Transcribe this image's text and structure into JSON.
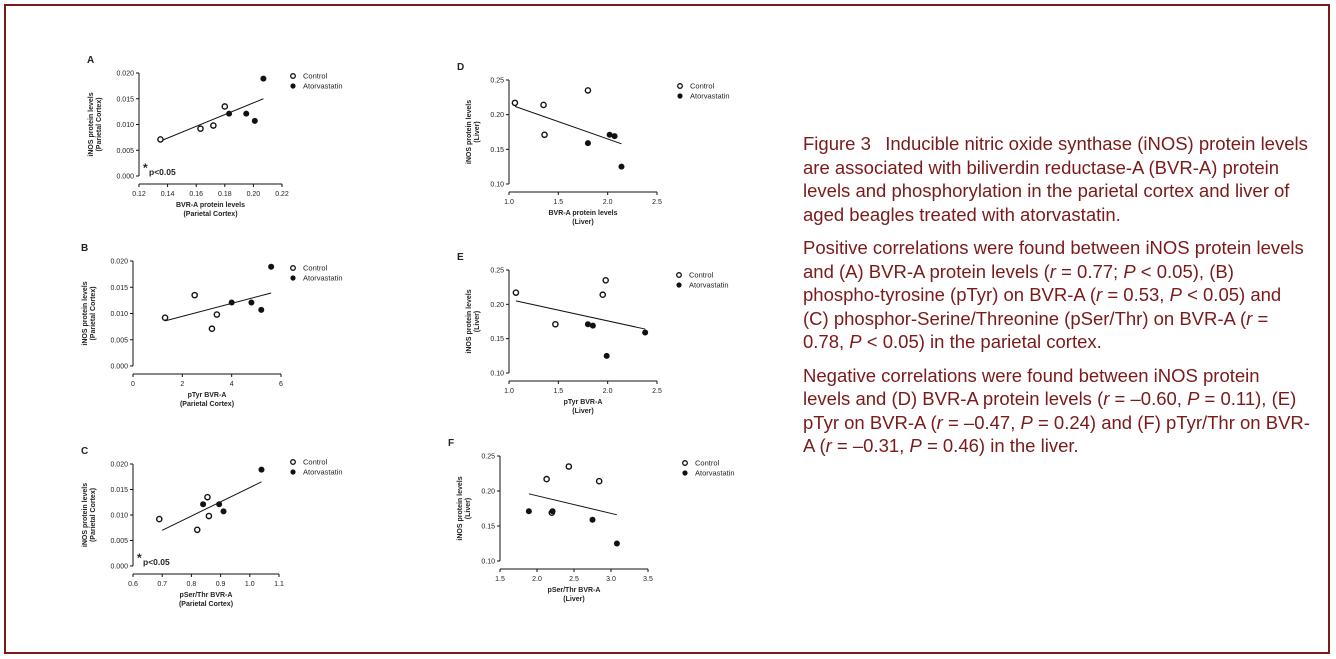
{
  "chart_data": [
    {
      "type": "scatter",
      "letter": "A",
      "xlabel": "BVR-A protein levels",
      "xlabel2": "(Parietal Cortex)",
      "ylabel": "iNOS protein levels",
      "ylabel2": "(Parietal Cortex)",
      "xlim": [
        0.12,
        0.22
      ],
      "ylim": [
        0,
        0.02
      ],
      "xticks": [
        "0.12",
        "0.14",
        "0.16",
        "0.18",
        "0.20",
        "0.22"
      ],
      "yticks": [
        "0.000",
        "0.005",
        "0.010",
        "0.015",
        "0.020"
      ],
      "annotation": "p<0.05",
      "annotation_star": "*",
      "legend": [
        "Control",
        "Atorvastatin"
      ],
      "series": [
        {
          "name": "Control",
          "marker": "open",
          "points": [
            [
              0.135,
              0.0071
            ],
            [
              0.163,
              0.0092
            ],
            [
              0.172,
              0.0098
            ],
            [
              0.18,
              0.0135
            ]
          ]
        },
        {
          "name": "Atorvastatin",
          "marker": "filled",
          "points": [
            [
              0.183,
              0.0121
            ],
            [
              0.195,
              0.0121
            ],
            [
              0.201,
              0.0107
            ],
            [
              0.207,
              0.0189
            ]
          ]
        }
      ],
      "fit": [
        [
          0.135,
          0.0068
        ],
        [
          0.207,
          0.015
        ]
      ]
    },
    {
      "type": "scatter",
      "letter": "B",
      "xlabel": "pTyr BVR-A",
      "xlabel2": "(Parietal Cortex)",
      "ylabel": "iNOS protein levels",
      "ylabel2": "(Parietal Cortex)",
      "xlim": [
        0,
        6
      ],
      "ylim": [
        0,
        0.02
      ],
      "xticks": [
        "0",
        "2",
        "4",
        "6"
      ],
      "yticks": [
        "0.000",
        "0.005",
        "0.010",
        "0.015",
        "0.020"
      ],
      "legend": [
        "Control",
        "Atorvastatin"
      ],
      "series": [
        {
          "name": "Control",
          "marker": "open",
          "points": [
            [
              1.3,
              0.0092
            ],
            [
              2.5,
              0.0135
            ],
            [
              3.2,
              0.0071
            ],
            [
              3.4,
              0.0098
            ]
          ]
        },
        {
          "name": "Atorvastatin",
          "marker": "filled",
          "points": [
            [
              4.0,
              0.0121
            ],
            [
              4.8,
              0.0121
            ],
            [
              5.2,
              0.0107
            ],
            [
              5.6,
              0.0189
            ]
          ]
        }
      ],
      "fit": [
        [
          1.3,
          0.0086
        ],
        [
          5.6,
          0.0139
        ]
      ]
    },
    {
      "type": "scatter",
      "letter": "C",
      "xlabel": "pSer/Thr BVR-A",
      "xlabel2": "(Parietal Cortex)",
      "ylabel": "iNOS protein levels",
      "ylabel2": "(Parietal Cortex)",
      "xlim": [
        0.6,
        1.1
      ],
      "ylim": [
        0,
        0.02
      ],
      "xticks": [
        "0.6",
        "0.7",
        "0.8",
        "0.9",
        "1.0",
        "1.1"
      ],
      "yticks": [
        "0.000",
        "0.005",
        "0.010",
        "0.015",
        "0.020"
      ],
      "annotation": "p<0.05",
      "annotation_star": "*",
      "legend": [
        "Control",
        "Atorvastatin"
      ],
      "series": [
        {
          "name": "Control",
          "marker": "open",
          "points": [
            [
              0.69,
              0.0092
            ],
            [
              0.82,
              0.0071
            ],
            [
              0.855,
              0.0135
            ],
            [
              0.86,
              0.0098
            ]
          ]
        },
        {
          "name": "Atorvastatin",
          "marker": "filled",
          "points": [
            [
              0.84,
              0.0121
            ],
            [
              0.895,
              0.0121
            ],
            [
              0.91,
              0.0107
            ],
            [
              1.04,
              0.0189
            ]
          ]
        }
      ],
      "fit": [
        [
          0.7,
          0.007
        ],
        [
          1.04,
          0.0165
        ]
      ]
    },
    {
      "type": "scatter",
      "letter": "D",
      "xlabel": "BVR-A protein levels",
      "xlabel2": "(Liver)",
      "ylabel": "iNOS protein levels",
      "ylabel2": "(Liver)",
      "xlim": [
        1.0,
        2.5
      ],
      "ylim": [
        0.1,
        0.25
      ],
      "xticks": [
        "1.0",
        "1.5",
        "2.0",
        "2.5"
      ],
      "yticks": [
        "0.10",
        "0.15",
        "0.20",
        "0.25"
      ],
      "legend": [
        "Control",
        "Atorvastatin"
      ],
      "series": [
        {
          "name": "Control",
          "marker": "open",
          "points": [
            [
              1.06,
              0.217
            ],
            [
              1.35,
              0.214
            ],
            [
              1.36,
              0.171
            ],
            [
              1.8,
              0.235
            ]
          ]
        },
        {
          "name": "Atorvastatin",
          "marker": "filled",
          "points": [
            [
              1.8,
              0.159
            ],
            [
              2.02,
              0.171
            ],
            [
              2.07,
              0.169
            ],
            [
              2.14,
              0.125
            ]
          ]
        }
      ],
      "fit": [
        [
          1.06,
          0.212
        ],
        [
          2.14,
          0.158
        ]
      ]
    },
    {
      "type": "scatter",
      "letter": "E",
      "xlabel": "pTyr BVR-A",
      "xlabel2": "(Liver)",
      "ylabel": "iNOS protein levels",
      "ylabel2": "(Liver)",
      "xlim": [
        1.0,
        2.5
      ],
      "ylim": [
        0.1,
        0.25
      ],
      "xticks": [
        "1.0",
        "1.5",
        "2.0",
        "2.5"
      ],
      "yticks": [
        "0.10",
        "0.15",
        "0.20",
        "0.25"
      ],
      "legend": [
        "Control",
        "Atorvastatin"
      ],
      "series": [
        {
          "name": "Control",
          "marker": "open",
          "points": [
            [
              1.07,
              0.217
            ],
            [
              1.47,
              0.171
            ],
            [
              1.95,
              0.214
            ],
            [
              1.98,
              0.235
            ]
          ]
        },
        {
          "name": "Atorvastatin",
          "marker": "filled",
          "points": [
            [
              1.8,
              0.171
            ],
            [
              1.85,
              0.169
            ],
            [
              1.99,
              0.125
            ],
            [
              2.38,
              0.159
            ]
          ]
        }
      ],
      "fit": [
        [
          1.07,
          0.205
        ],
        [
          2.38,
          0.164
        ]
      ]
    },
    {
      "type": "scatter",
      "letter": "F",
      "xlabel": "pSer/Thr BVR-A",
      "xlabel2": "(Liver)",
      "ylabel": "iNOS protein levels",
      "ylabel2": "(Liver)",
      "xlim": [
        1.5,
        3.5
      ],
      "ylim": [
        0.1,
        0.25
      ],
      "xticks": [
        "1.5",
        "2.0",
        "2.5",
        "3.0",
        "3.5"
      ],
      "yticks": [
        "0.10",
        "0.15",
        "0.20",
        "0.25"
      ],
      "legend": [
        "Control",
        "Atorvastatin"
      ],
      "series": [
        {
          "name": "Control",
          "marker": "open",
          "points": [
            [
              2.13,
              0.217
            ],
            [
              2.2,
              0.169
            ],
            [
              2.43,
              0.235
            ],
            [
              2.84,
              0.214
            ]
          ]
        },
        {
          "name": "Atorvastatin",
          "marker": "filled",
          "points": [
            [
              1.89,
              0.171
            ],
            [
              2.21,
              0.171
            ],
            [
              2.75,
              0.159
            ],
            [
              3.08,
              0.125
            ]
          ]
        }
      ],
      "fit": [
        [
          1.89,
          0.196
        ],
        [
          3.08,
          0.166
        ]
      ]
    }
  ],
  "caption": {
    "p1": "Figure 3  Inducible nitric oxide synthase (iNOS) protein levels are associated with biliverdin reductase-A (BVR-A) protein levels and phosphorylation in the parietal cortex and liver of aged beagles treated with atorvastatin.",
    "p2": [
      {
        "t": "Positive correlations were found between iNOS protein levels and (A) BVR-A protein levels ("
      },
      {
        "t": "r",
        "i": true
      },
      {
        "t": " = 0.77; "
      },
      {
        "t": "P",
        "i": true
      },
      {
        "t": " < 0.05), (B) phospho-tyrosine (pTyr) on BVR-A ("
      },
      {
        "t": "r",
        "i": true
      },
      {
        "t": " = 0.53, "
      },
      {
        "t": "P",
        "i": true
      },
      {
        "t": " < 0.05) and (C) phosphor-Serine/Threonine (pSer/Thr) on BVR-A ("
      },
      {
        "t": "r",
        "i": true
      },
      {
        "t": " = 0.78, "
      },
      {
        "t": "P",
        "i": true
      },
      {
        "t": " < 0.05) in the parietal cortex."
      }
    ],
    "p3": [
      {
        "t": "Negative correlations were found between iNOS protein levels and (D) BVR-A protein levels ("
      },
      {
        "t": "r",
        "i": true
      },
      {
        "t": " = –0.60, "
      },
      {
        "t": "P",
        "i": true
      },
      {
        "t": " = 0.11), (E) pTyr on BVR-A ("
      },
      {
        "t": "r",
        "i": true
      },
      {
        "t": " = –0.47, "
      },
      {
        "t": "P",
        "i": true
      },
      {
        "t": " = 0.24) and (F) pTyr/Thr on BVR-A ("
      },
      {
        "t": "r",
        "i": true
      },
      {
        "t": " = –0.31, "
      },
      {
        "t": "P",
        "i": true
      },
      {
        "t": " = 0.46) in the liver."
      }
    ]
  }
}
